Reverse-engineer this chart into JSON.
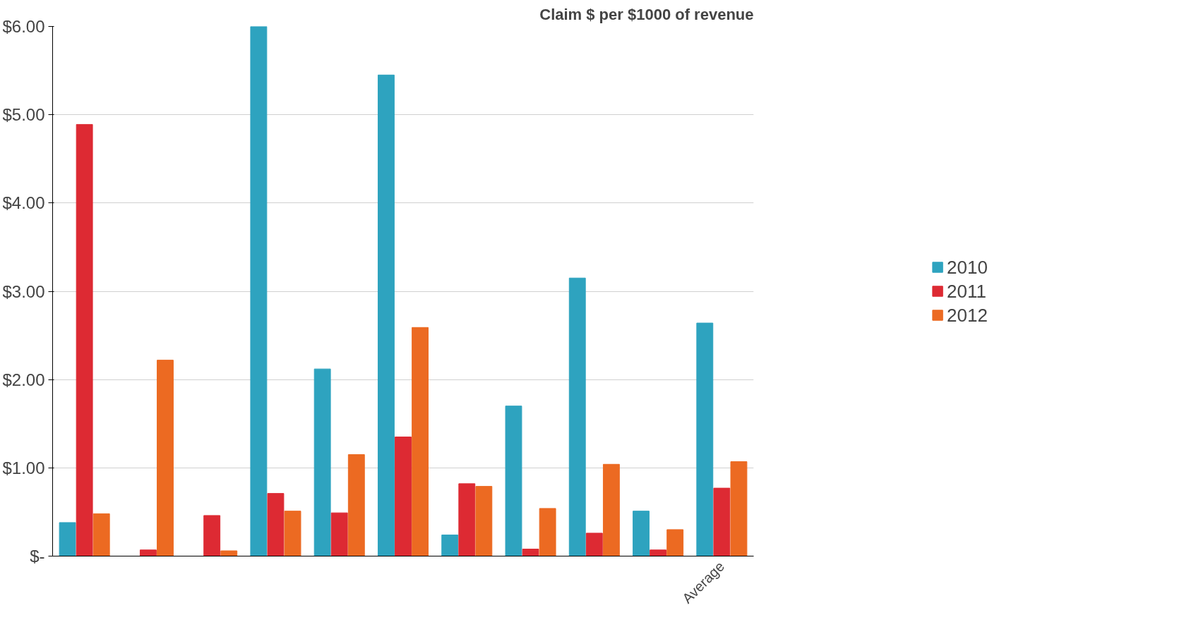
{
  "chart_data": {
    "type": "bar",
    "title": "Claim $ per $1000 of revenue",
    "categories": [
      null,
      null,
      null,
      null,
      null,
      null,
      null,
      null,
      null,
      null,
      "Average"
    ],
    "series": [
      {
        "name": "2010",
        "color": "#2ea3bf",
        "values": [
          0.38,
          null,
          null,
          6.0,
          2.12,
          5.45,
          0.24,
          1.7,
          3.15,
          0.51,
          2.64
        ]
      },
      {
        "name": "2011",
        "color": "#dd2a33",
        "values": [
          4.89,
          0.07,
          0.46,
          0.71,
          0.49,
          1.35,
          0.82,
          0.08,
          0.26,
          0.07,
          0.77
        ]
      },
      {
        "name": "2012",
        "color": "#ec6a22",
        "values": [
          0.48,
          2.22,
          0.06,
          0.51,
          1.15,
          2.59,
          0.79,
          0.54,
          1.04,
          0.3,
          1.07
        ]
      }
    ],
    "ylim": [
      0,
      6
    ],
    "yticks": [
      {
        "value": 0,
        "label": "$-"
      },
      {
        "value": 1,
        "label": "$1.00"
      },
      {
        "value": 2,
        "label": "$2.00"
      },
      {
        "value": 3,
        "label": "$3.00"
      },
      {
        "value": 4,
        "label": "$4.00"
      },
      {
        "value": 5,
        "label": "$5.00"
      },
      {
        "value": 6,
        "label": "$6.00"
      }
    ],
    "grid": "y",
    "legend": "right"
  }
}
